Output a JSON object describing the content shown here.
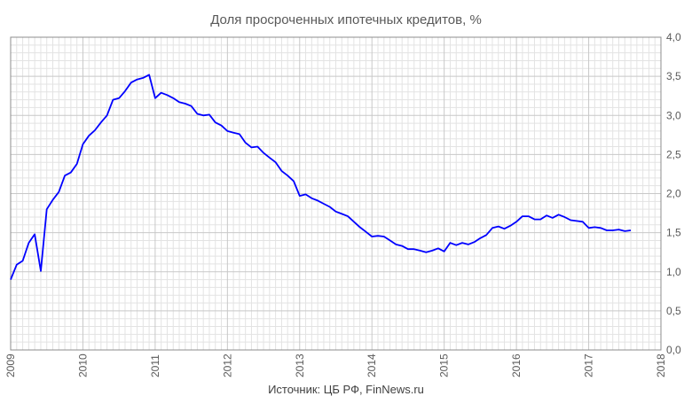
{
  "title": "Доля просроченных ипотечных кредитов, %",
  "source": "Источник: ЦБ РФ, FinNews.ru",
  "colors": {
    "series": "#0000FF",
    "grid_major": "#C8C8C8",
    "grid_minor": "#E3E3E3",
    "axis": "#8C8C8C"
  },
  "chart_data": {
    "type": "line",
    "title": "Доля просроченных ипотечных кредитов, %",
    "xlabel": "",
    "ylabel": "",
    "xlim": [
      2009,
      2018
    ],
    "ylim": [
      0,
      4
    ],
    "x_ticks": [
      "2009",
      "2010",
      "2011",
      "2012",
      "2013",
      "2014",
      "2015",
      "2016",
      "2017",
      "2018"
    ],
    "y_ticks": [
      "0,0",
      "0,5",
      "1,0",
      "1,5",
      "2,0",
      "2,5",
      "3,0",
      "3,5",
      "4,0"
    ],
    "grid": true,
    "y_axis_side": "right",
    "series": [
      {
        "name": "",
        "x": [
          2009.0,
          2009.083,
          2009.167,
          2009.25,
          2009.333,
          2009.417,
          2009.5,
          2009.583,
          2009.667,
          2009.75,
          2009.833,
          2009.917,
          2010.0,
          2010.083,
          2010.167,
          2010.25,
          2010.333,
          2010.417,
          2010.5,
          2010.583,
          2010.667,
          2010.75,
          2010.833,
          2010.917,
          2011.0,
          2011.083,
          2011.167,
          2011.25,
          2011.333,
          2011.417,
          2011.5,
          2011.583,
          2011.667,
          2011.75,
          2011.833,
          2011.917,
          2012.0,
          2012.083,
          2012.167,
          2012.25,
          2012.333,
          2012.417,
          2012.5,
          2012.583,
          2012.667,
          2012.75,
          2012.833,
          2012.917,
          2013.0,
          2013.083,
          2013.167,
          2013.25,
          2013.333,
          2013.417,
          2013.5,
          2013.583,
          2013.667,
          2013.75,
          2013.833,
          2013.917,
          2014.0,
          2014.083,
          2014.167,
          2014.25,
          2014.333,
          2014.417,
          2014.5,
          2014.583,
          2014.667,
          2014.75,
          2014.833,
          2014.917,
          2015.0,
          2015.083,
          2015.167,
          2015.25,
          2015.333,
          2015.417,
          2015.5,
          2015.583,
          2015.667,
          2015.75,
          2015.833,
          2015.917,
          2016.0,
          2016.083,
          2016.167,
          2016.25,
          2016.333,
          2016.417,
          2016.5,
          2016.583,
          2016.667,
          2016.75,
          2016.833,
          2016.917,
          2017.0,
          2017.083,
          2017.167,
          2017.25,
          2017.333,
          2017.417,
          2017.5,
          2017.583
        ],
        "y": [
          0.9,
          1.09,
          1.14,
          1.37,
          1.48,
          1.01,
          1.8,
          1.92,
          2.02,
          2.23,
          2.27,
          2.38,
          2.63,
          2.74,
          2.81,
          2.91,
          3.0,
          3.2,
          3.22,
          3.31,
          3.42,
          3.46,
          3.48,
          3.52,
          3.22,
          3.29,
          3.26,
          3.22,
          3.17,
          3.15,
          3.12,
          3.02,
          3.0,
          3.01,
          2.91,
          2.87,
          2.8,
          2.78,
          2.76,
          2.65,
          2.59,
          2.6,
          2.52,
          2.46,
          2.4,
          2.29,
          2.23,
          2.16,
          1.97,
          1.99,
          1.94,
          1.91,
          1.87,
          1.83,
          1.77,
          1.74,
          1.71,
          1.64,
          1.57,
          1.51,
          1.45,
          1.46,
          1.45,
          1.4,
          1.35,
          1.33,
          1.29,
          1.29,
          1.27,
          1.25,
          1.27,
          1.3,
          1.26,
          1.37,
          1.34,
          1.37,
          1.35,
          1.38,
          1.43,
          1.47,
          1.56,
          1.58,
          1.55,
          1.59,
          1.64,
          1.71,
          1.71,
          1.67,
          1.67,
          1.72,
          1.69,
          1.73,
          1.7,
          1.66,
          1.65,
          1.64,
          1.56,
          1.57,
          1.56,
          1.53,
          1.53,
          1.54,
          1.52,
          1.53
        ]
      }
    ]
  }
}
